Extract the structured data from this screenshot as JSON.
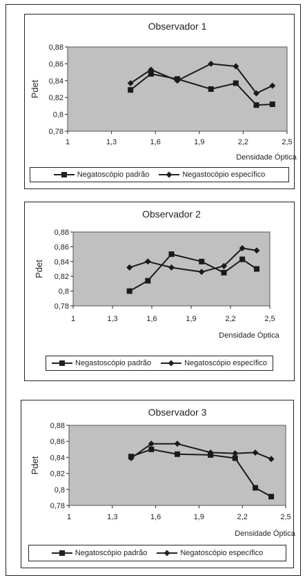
{
  "chart_data": [
    {
      "type": "line",
      "title": "Observador 1",
      "xlabel": "Densidade Óptica",
      "ylabel": "Pdet",
      "xlim": [
        1,
        2.5
      ],
      "ylim": [
        0.78,
        0.88
      ],
      "xticks": [
        "1",
        "1,3",
        "1,6",
        "1,9",
        "2,2",
        "2,5"
      ],
      "yticks": [
        "0,78",
        "0,8",
        "0,82",
        "0,84",
        "0,86",
        "0,88"
      ],
      "legend_position": "bottom",
      "series": [
        {
          "name": "Negatoscópio padrão",
          "marker": "square",
          "x": [
            1.43,
            1.57,
            1.75,
            1.98,
            2.15,
            2.29,
            2.4
          ],
          "y": [
            0.829,
            0.848,
            0.842,
            0.83,
            0.837,
            0.811,
            0.812
          ]
        },
        {
          "name": "Negastocópio específico",
          "marker": "diamond",
          "x": [
            1.43,
            1.57,
            1.75,
            1.98,
            2.15,
            2.29,
            2.4
          ],
          "y": [
            0.837,
            0.853,
            0.84,
            0.86,
            0.857,
            0.825,
            0.834
          ]
        }
      ]
    },
    {
      "type": "line",
      "title": "Observador 2",
      "xlabel": "Densidade Óptica",
      "ylabel": "Pdet",
      "xlim": [
        1,
        2.5
      ],
      "ylim": [
        0.78,
        0.88
      ],
      "xticks": [
        "1",
        "1,3",
        "1,6",
        "1,9",
        "2,2",
        "2,5"
      ],
      "yticks": [
        "0,78",
        "0,8",
        "0,82",
        "0,84",
        "0,86",
        "0,88"
      ],
      "legend_position": "bottom",
      "series": [
        {
          "name": "Negastoscópio padrão",
          "marker": "square",
          "x": [
            1.43,
            1.57,
            1.75,
            1.98,
            2.15,
            2.29,
            2.4
          ],
          "y": [
            0.8,
            0.814,
            0.85,
            0.84,
            0.825,
            0.843,
            0.83
          ]
        },
        {
          "name": "Negatoscópio específico",
          "marker": "diamond",
          "x": [
            1.43,
            1.57,
            1.75,
            1.98,
            2.15,
            2.29,
            2.4
          ],
          "y": [
            0.832,
            0.84,
            0.832,
            0.826,
            0.834,
            0.858,
            0.855
          ]
        }
      ]
    },
    {
      "type": "line",
      "title": "Observador 3",
      "xlabel": "Densidade Óptica",
      "ylabel": "Pdet",
      "xlim": [
        1,
        2.5
      ],
      "ylim": [
        0.78,
        0.88
      ],
      "xticks": [
        "1",
        "1,3",
        "1,6",
        "1,9",
        "2,2",
        "2,5"
      ],
      "yticks": [
        "0,78",
        "0,8",
        "0,82",
        "0,84",
        "0,86",
        "0,88"
      ],
      "legend_position": "bottom",
      "series": [
        {
          "name": "Negatoscópio padrão",
          "marker": "square",
          "x": [
            1.43,
            1.57,
            1.75,
            1.98,
            2.15,
            2.29,
            2.4
          ],
          "y": [
            0.841,
            0.85,
            0.844,
            0.843,
            0.839,
            0.802,
            0.791
          ]
        },
        {
          "name": "Negatoscópio específico",
          "marker": "diamond",
          "x": [
            1.43,
            1.57,
            1.75,
            1.98,
            2.15,
            2.29,
            2.4
          ],
          "y": [
            0.839,
            0.857,
            0.857,
            0.846,
            0.845,
            0.846,
            0.838
          ]
        }
      ]
    }
  ],
  "style": {
    "plot_background": "#c0c0c0",
    "line_color": "#1a1a1a"
  }
}
